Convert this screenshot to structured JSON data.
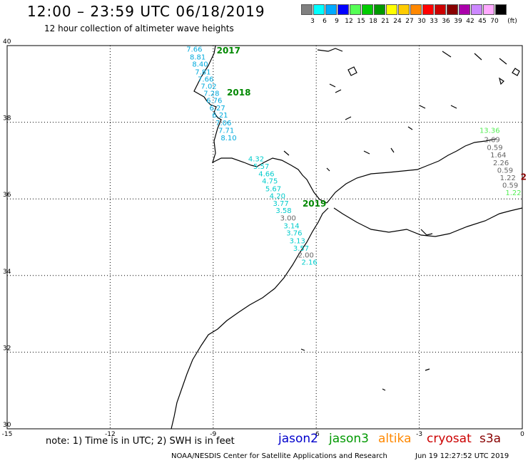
{
  "header": {
    "title": "12:00 – 23:59 UTC 06/18/2019",
    "subtitle": "12 hour collection of altimeter wave heights"
  },
  "legend": {
    "unit": "(ft)",
    "bins": [
      {
        "label": "3",
        "color": "#808080"
      },
      {
        "label": "6",
        "color": "#00ffff"
      },
      {
        "label": "9",
        "color": "#00aaff"
      },
      {
        "label": "12",
        "color": "#0000ff"
      },
      {
        "label": "15",
        "color": "#55ff55"
      },
      {
        "label": "18",
        "color": "#00cc00"
      },
      {
        "label": "21",
        "color": "#009900"
      },
      {
        "label": "24",
        "color": "#ffff00"
      },
      {
        "label": "27",
        "color": "#ffcc00"
      },
      {
        "label": "30",
        "color": "#ff8800"
      },
      {
        "label": "33",
        "color": "#ff0000"
      },
      {
        "label": "36",
        "color": "#cc0000"
      },
      {
        "label": "39",
        "color": "#880000"
      },
      {
        "label": "42",
        "color": "#aa00aa"
      },
      {
        "label": "45",
        "color": "#cc88ff"
      },
      {
        "label": "70",
        "color": "#ffaaff"
      },
      {
        "label": "",
        "color": "#000000"
      }
    ]
  },
  "axes": {
    "lon_ticks": [
      {
        "lon": -15,
        "label": "-15"
      },
      {
        "lon": -12,
        "label": "-12"
      },
      {
        "lon": -9,
        "label": "-9"
      },
      {
        "lon": -6,
        "label": "-6"
      },
      {
        "lon": -3,
        "label": "-3"
      },
      {
        "lon": 0,
        "label": "0"
      }
    ],
    "lat_ticks": [
      {
        "lat": 40,
        "label": "40"
      },
      {
        "lat": 38,
        "label": "38"
      },
      {
        "lat": 36,
        "label": "36"
      },
      {
        "lat": 34,
        "label": "34"
      },
      {
        "lat": 32,
        "label": "32"
      },
      {
        "lat": 30,
        "label": "30"
      }
    ],
    "lon_range": [
      -15,
      0
    ],
    "lat_range": [
      30,
      40
    ],
    "grid": "dotted"
  },
  "track_labels": [
    {
      "text": "2017",
      "lon": -8.9,
      "lat": 39.8,
      "color": "#008800"
    },
    {
      "text": "2018",
      "lon": -8.6,
      "lat": 38.7,
      "color": "#008800"
    },
    {
      "text": "2019",
      "lon": -6.4,
      "lat": 35.8,
      "color": "#008800"
    },
    {
      "text": "2",
      "lon": -0.05,
      "lat": 36.5,
      "color": "#880000"
    }
  ],
  "observations": [
    {
      "value": "7.66",
      "lon": -9.55,
      "lat": 39.84,
      "color": "#00aadd"
    },
    {
      "value": "8.81",
      "lon": -9.45,
      "lat": 39.64,
      "color": "#00aadd"
    },
    {
      "value": "8.40",
      "lon": -9.38,
      "lat": 39.45,
      "color": "#00aadd"
    },
    {
      "value": "7.81",
      "lon": -9.3,
      "lat": 39.25,
      "color": "#00aadd"
    },
    {
      "value": "7.66",
      "lon": -9.22,
      "lat": 39.06,
      "color": "#00aadd"
    },
    {
      "value": "7.02",
      "lon": -9.13,
      "lat": 38.88,
      "color": "#00aadd"
    },
    {
      "value": "7.28",
      "lon": -9.05,
      "lat": 38.69,
      "color": "#00aadd"
    },
    {
      "value": "6.76",
      "lon": -8.97,
      "lat": 38.5,
      "color": "#00aadd"
    },
    {
      "value": "6.27",
      "lon": -8.88,
      "lat": 38.31,
      "color": "#00aadd"
    },
    {
      "value": "6.21",
      "lon": -8.8,
      "lat": 38.12,
      "color": "#00aadd"
    },
    {
      "value": "7.06",
      "lon": -8.7,
      "lat": 37.92,
      "color": "#00aadd"
    },
    {
      "value": "7.71",
      "lon": -8.62,
      "lat": 37.72,
      "color": "#00aadd"
    },
    {
      "value": "8.10",
      "lon": -8.55,
      "lat": 37.53,
      "color": "#00aadd"
    },
    {
      "value": "4.32",
      "lon": -7.75,
      "lat": 36.98,
      "color": "#00cccc"
    },
    {
      "value": "5.57",
      "lon": -7.6,
      "lat": 36.78,
      "color": "#00cccc"
    },
    {
      "value": "4.66",
      "lon": -7.45,
      "lat": 36.59,
      "color": "#00cccc"
    },
    {
      "value": "4.75",
      "lon": -7.35,
      "lat": 36.4,
      "color": "#00cccc"
    },
    {
      "value": "5.67",
      "lon": -7.25,
      "lat": 36.2,
      "color": "#00cccc"
    },
    {
      "value": "4.20",
      "lon": -7.13,
      "lat": 36.01,
      "color": "#00cccc"
    },
    {
      "value": "3.77",
      "lon": -7.03,
      "lat": 35.82,
      "color": "#00cccc"
    },
    {
      "value": "3.58",
      "lon": -6.95,
      "lat": 35.63,
      "color": "#00cccc"
    },
    {
      "value": "3.00",
      "lon": -6.82,
      "lat": 35.44,
      "color": "#666666"
    },
    {
      "value": "3.14",
      "lon": -6.72,
      "lat": 35.23,
      "color": "#00cccc"
    },
    {
      "value": "3.76",
      "lon": -6.64,
      "lat": 35.05,
      "color": "#00cccc"
    },
    {
      "value": "3.13",
      "lon": -6.55,
      "lat": 34.84,
      "color": "#00cccc"
    },
    {
      "value": "3.57",
      "lon": -6.44,
      "lat": 34.65,
      "color": "#00cccc"
    },
    {
      "value": "2.00",
      "lon": -6.3,
      "lat": 34.47,
      "color": "#666666"
    },
    {
      "value": "2.16",
      "lon": -6.2,
      "lat": 34.28,
      "color": "#00cccc"
    },
    {
      "value": "13.36",
      "lon": -0.95,
      "lat": 37.72,
      "color": "#55ee55"
    },
    {
      "value": "2.69",
      "lon": -0.88,
      "lat": 37.48,
      "color": "#666666"
    },
    {
      "value": "0.59",
      "lon": -0.8,
      "lat": 37.28,
      "color": "#666666"
    },
    {
      "value": "1.64",
      "lon": -0.7,
      "lat": 37.08,
      "color": "#666666"
    },
    {
      "value": "2.26",
      "lon": -0.62,
      "lat": 36.88,
      "color": "#666666"
    },
    {
      "value": "0.59",
      "lon": -0.5,
      "lat": 36.68,
      "color": "#666666"
    },
    {
      "value": "1.22",
      "lon": -0.42,
      "lat": 36.49,
      "color": "#666666"
    },
    {
      "value": "0.59",
      "lon": -0.35,
      "lat": 36.29,
      "color": "#666666"
    },
    {
      "value": "1.22",
      "lon": -0.26,
      "lat": 36.1,
      "color": "#55ee55"
    }
  ],
  "note": "note: 1) Time is in UTC; 2) SWH is in feet",
  "satellites": [
    {
      "name": "jason2",
      "color": "#0000cc"
    },
    {
      "name": "jason3",
      "color": "#009900"
    },
    {
      "name": "altika",
      "color": "#ff8800"
    },
    {
      "name": "cryosat",
      "color": "#cc0000"
    },
    {
      "name": "s3a",
      "color": "#880000"
    }
  ],
  "footer": {
    "credit": "NOAA/NESDIS Center for Satellite Applications and Research",
    "timestamp": "Jun 19 12:27:52 UTC 2019"
  }
}
